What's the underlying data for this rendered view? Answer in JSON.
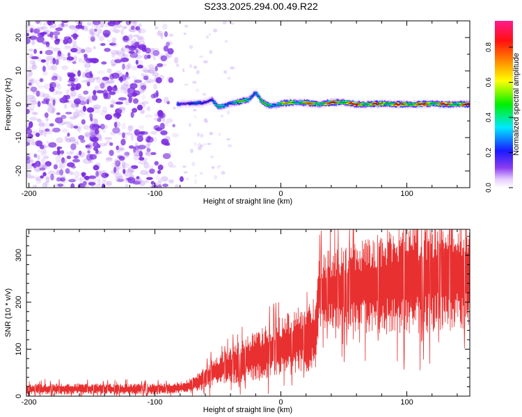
{
  "title": "S233.2025.294.00.49.R22",
  "chart_data": [
    {
      "type": "heatmap",
      "xlabel": "Height of straight line (km)",
      "ylabel": "Frequency (Hz)",
      "xlim": [
        -202,
        150
      ],
      "ylim": [
        -25,
        25
      ],
      "x_ticks": [
        -200,
        -100,
        0,
        100
      ],
      "y_ticks": [
        -20,
        -10,
        0,
        10,
        20
      ],
      "grid": false,
      "colorbar": {
        "label": "Normalized spectral amplitude",
        "range": [
          0.0,
          0.95
        ],
        "ticks": [
          0.0,
          0.2,
          0.4,
          0.6,
          0.8
        ],
        "colormap": "rainbow (white-purple-blue-cyan-green-yellow-orange-red-magenta)"
      },
      "features": {
        "noise_region_x": [
          -202,
          -78
        ],
        "noise_color": "#7a2be0",
        "noise_amplitude_approx": 0.05,
        "ridge": {
          "x": [
            -82,
            -70,
            -60,
            -55,
            -50,
            -45,
            -40,
            -35,
            -30,
            -25,
            -20,
            -15,
            -10,
            -5,
            0,
            10,
            20,
            30,
            40,
            50,
            60,
            70,
            80,
            90,
            100,
            110,
            120,
            130,
            140,
            150
          ],
          "frequency": [
            0.0,
            0.3,
            0.5,
            1.5,
            -0.8,
            -0.5,
            0.3,
            0.6,
            1.0,
            1.5,
            3.5,
            0.8,
            -0.3,
            -0.5,
            0.2,
            0.5,
            0.4,
            0.0,
            0.5,
            0.6,
            0.0,
            0.0,
            0.2,
            0.0,
            0.0,
            0.0,
            0.2,
            0.0,
            0.0,
            0.0
          ],
          "amplitude": [
            0.3,
            0.25,
            0.3,
            0.35,
            0.4,
            0.45,
            0.5,
            0.55,
            0.55,
            0.6,
            0.5,
            0.5,
            0.55,
            0.6,
            0.65,
            0.7,
            0.75,
            0.8,
            0.85,
            0.9,
            0.9,
            0.88,
            0.85,
            0.9,
            0.9,
            0.9,
            0.85,
            0.88,
            0.9,
            0.9
          ]
        }
      }
    },
    {
      "type": "line",
      "xlabel": "Height of straight line (km)",
      "ylabel": "SNR (10 * v/v)",
      "xlim": [
        -202,
        150
      ],
      "ylim": [
        0,
        355
      ],
      "x_ticks": [
        -200,
        -100,
        0,
        100
      ],
      "y_ticks": [
        0,
        100,
        200,
        300
      ],
      "grid": false,
      "series": [
        {
          "color": "#e83030",
          "x": [
            -200,
            -180,
            -160,
            -140,
            -120,
            -100,
            -90,
            -80,
            -75,
            -70,
            -65,
            -60,
            -50,
            -40,
            -30,
            -20,
            -10,
            0,
            10,
            20,
            28,
            30,
            40,
            60,
            80,
            100,
            120,
            140,
            150
          ],
          "y": [
            15,
            15,
            15,
            15,
            15,
            15,
            16,
            18,
            20,
            25,
            30,
            40,
            55,
            65,
            75,
            85,
            95,
            105,
            115,
            125,
            135,
            220,
            225,
            235,
            240,
            250,
            255,
            260,
            265
          ],
          "spread": [
            12,
            12,
            12,
            12,
            12,
            12,
            12,
            13,
            14,
            18,
            20,
            25,
            35,
            40,
            45,
            55,
            60,
            65,
            70,
            75,
            75,
            85,
            90,
            100,
            110,
            120,
            120,
            120,
            120
          ]
        }
      ]
    }
  ]
}
